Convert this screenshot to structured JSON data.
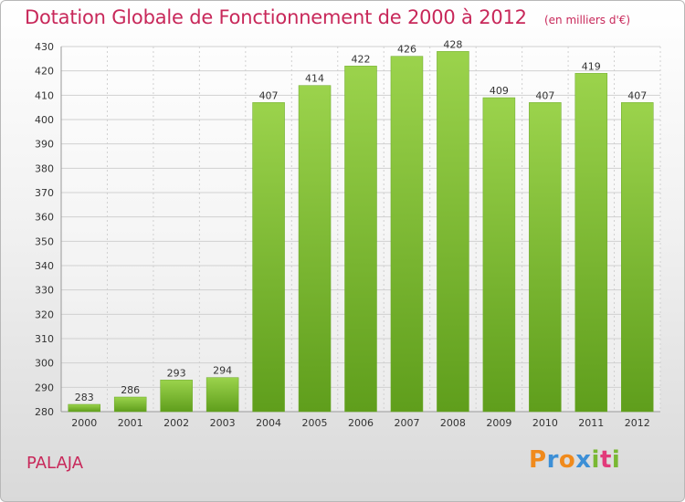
{
  "chart_data": {
    "type": "bar",
    "title": "Dotation Globale de Fonctionnement de 2000 à 2012",
    "unit_label": "(en milliers d'€)",
    "categories": [
      "2000",
      "2001",
      "2002",
      "2003",
      "2004",
      "2005",
      "2006",
      "2007",
      "2008",
      "2009",
      "2010",
      "2011",
      "2012"
    ],
    "values": [
      283,
      286,
      293,
      294,
      407,
      414,
      422,
      426,
      428,
      409,
      407,
      419,
      407
    ],
    "ylim": [
      280,
      430
    ],
    "yticks": [
      280,
      290,
      300,
      310,
      320,
      330,
      340,
      350,
      360,
      370,
      380,
      390,
      400,
      410,
      420,
      430
    ],
    "grid": true,
    "bar_color": "#7cc12e",
    "bar_color_light": "#9bd34c",
    "grid_color": "#d0d0d0"
  },
  "footer": {
    "commune": "PALAJA",
    "brand_letters": [
      {
        "ch": "P",
        "color": "#f08a1c"
      },
      {
        "ch": "r",
        "color": "#3c8fd6"
      },
      {
        "ch": "o",
        "color": "#f08a1c"
      },
      {
        "ch": "x",
        "color": "#3c8fd6"
      },
      {
        "ch": "i",
        "color": "#79b833"
      },
      {
        "ch": "t",
        "color": "#e23a7a"
      },
      {
        "ch": "i",
        "color": "#79b833"
      }
    ]
  }
}
